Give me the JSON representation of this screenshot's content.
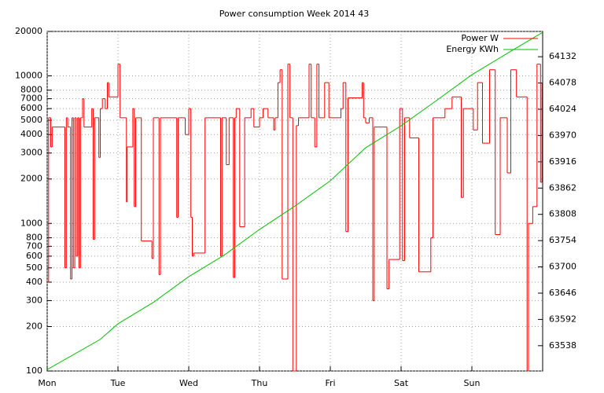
{
  "chart_data": {
    "type": "line",
    "title": "Power consumption Week 2014 43",
    "log_y": true,
    "grid": true,
    "legend": "top-right",
    "xlim": [
      0,
      7
    ],
    "xticks": [
      {
        "value": 0,
        "label": "Mon"
      },
      {
        "value": 1,
        "label": "Tue"
      },
      {
        "value": 2,
        "label": "Wed"
      },
      {
        "value": 3,
        "label": "Thu"
      },
      {
        "value": 4,
        "label": "Fri"
      },
      {
        "value": 5,
        "label": "Sat"
      },
      {
        "value": 6,
        "label": "Sun"
      }
    ],
    "ylim": [
      100,
      20000
    ],
    "yticks": [
      100,
      200,
      300,
      400,
      500,
      600,
      700,
      800,
      1000,
      2000,
      3000,
      4000,
      5000,
      6000,
      7000,
      8000,
      10000,
      20000
    ],
    "y2lim": [
      63486,
      64184
    ],
    "y2ticks": [
      63538,
      63592,
      63646,
      63700,
      63754,
      63808,
      63862,
      63916,
      63970,
      64024,
      64078,
      64132
    ],
    "series": [
      {
        "name": "Power W",
        "color": "#ff0000",
        "style": "steps",
        "x": [
          0.0,
          0.02,
          0.05,
          0.07,
          0.25,
          0.27,
          0.29,
          0.33,
          0.35,
          0.37,
          0.39,
          0.41,
          0.43,
          0.45,
          0.47,
          0.5,
          0.52,
          0.63,
          0.65,
          0.67,
          0.73,
          0.75,
          0.78,
          0.82,
          0.85,
          0.87,
          1.0,
          1.03,
          1.12,
          1.13,
          1.21,
          1.23,
          1.25,
          1.33,
          1.48,
          1.5,
          1.58,
          1.6,
          1.83,
          1.85,
          1.95,
          2.0,
          2.03,
          2.05,
          2.07,
          2.23,
          2.45,
          2.47,
          2.53,
          2.57,
          2.63,
          2.65,
          2.67,
          2.72,
          2.79,
          2.88,
          2.92,
          3.0,
          3.05,
          3.12,
          3.2,
          3.22,
          3.26,
          3.29,
          3.32,
          3.4,
          3.43,
          3.47,
          3.52,
          3.55,
          3.7,
          3.73,
          3.78,
          3.81,
          3.84,
          3.92,
          3.98,
          4.12,
          4.15,
          4.18,
          4.22,
          4.25,
          4.45,
          4.47,
          4.5,
          4.55,
          4.6,
          4.62,
          4.8,
          4.83,
          4.98,
          5.02,
          5.05,
          5.12,
          5.25,
          5.42,
          5.45,
          5.55,
          5.62,
          5.72,
          5.85,
          5.88,
          6.02,
          6.08,
          6.15,
          6.25,
          6.33,
          6.4,
          6.5,
          6.55,
          6.63,
          6.78,
          6.8,
          6.86,
          6.92,
          6.97,
          6.99
        ],
        "values": [
          400,
          5200,
          3300,
          4500,
          500,
          5200,
          4500,
          420,
          5200,
          500,
          5200,
          600,
          5200,
          500,
          5200,
          7000,
          4500,
          6000,
          780,
          5200,
          2800,
          6000,
          7000,
          6000,
          9000,
          7200,
          12000,
          5200,
          1400,
          3300,
          6000,
          1300,
          5200,
          760,
          580,
          5200,
          450,
          5200,
          1100,
          5200,
          4000,
          6000,
          1100,
          600,
          630,
          5200,
          600,
          5200,
          2500,
          5200,
          430,
          5200,
          6000,
          950,
          5200,
          6000,
          4500,
          5200,
          6000,
          5200,
          4300,
          5200,
          9000,
          11000,
          420,
          12000,
          5200,
          100,
          4600,
          5200,
          12000,
          5200,
          3300,
          12000,
          5200,
          9000,
          5200,
          5200,
          6000,
          9000,
          880,
          7100,
          9000,
          5200,
          4800,
          5200,
          300,
          4500,
          360,
          570,
          6000,
          560,
          5200,
          3800,
          470,
          800,
          5200,
          5200,
          6000,
          7200,
          1500,
          6000,
          4300,
          9000,
          3500,
          11000,
          840,
          5200,
          2200,
          11000,
          7200,
          100,
          1000,
          1300,
          12000,
          1900,
          9000
        ]
      },
      {
        "name": "Energy KWh",
        "color": "#00c000",
        "axis": "y2",
        "x": [
          0,
          0.75,
          1.0,
          1.5,
          2.0,
          2.5,
          3.0,
          3.5,
          4.0,
          4.5,
          5.0,
          5.5,
          6.0,
          6.5,
          7.0
        ],
        "values": [
          63489,
          63551,
          63583,
          63627,
          63680,
          63724,
          63777,
          63825,
          63877,
          63945,
          63990,
          64042,
          64095,
          64139,
          64182
        ]
      }
    ]
  }
}
